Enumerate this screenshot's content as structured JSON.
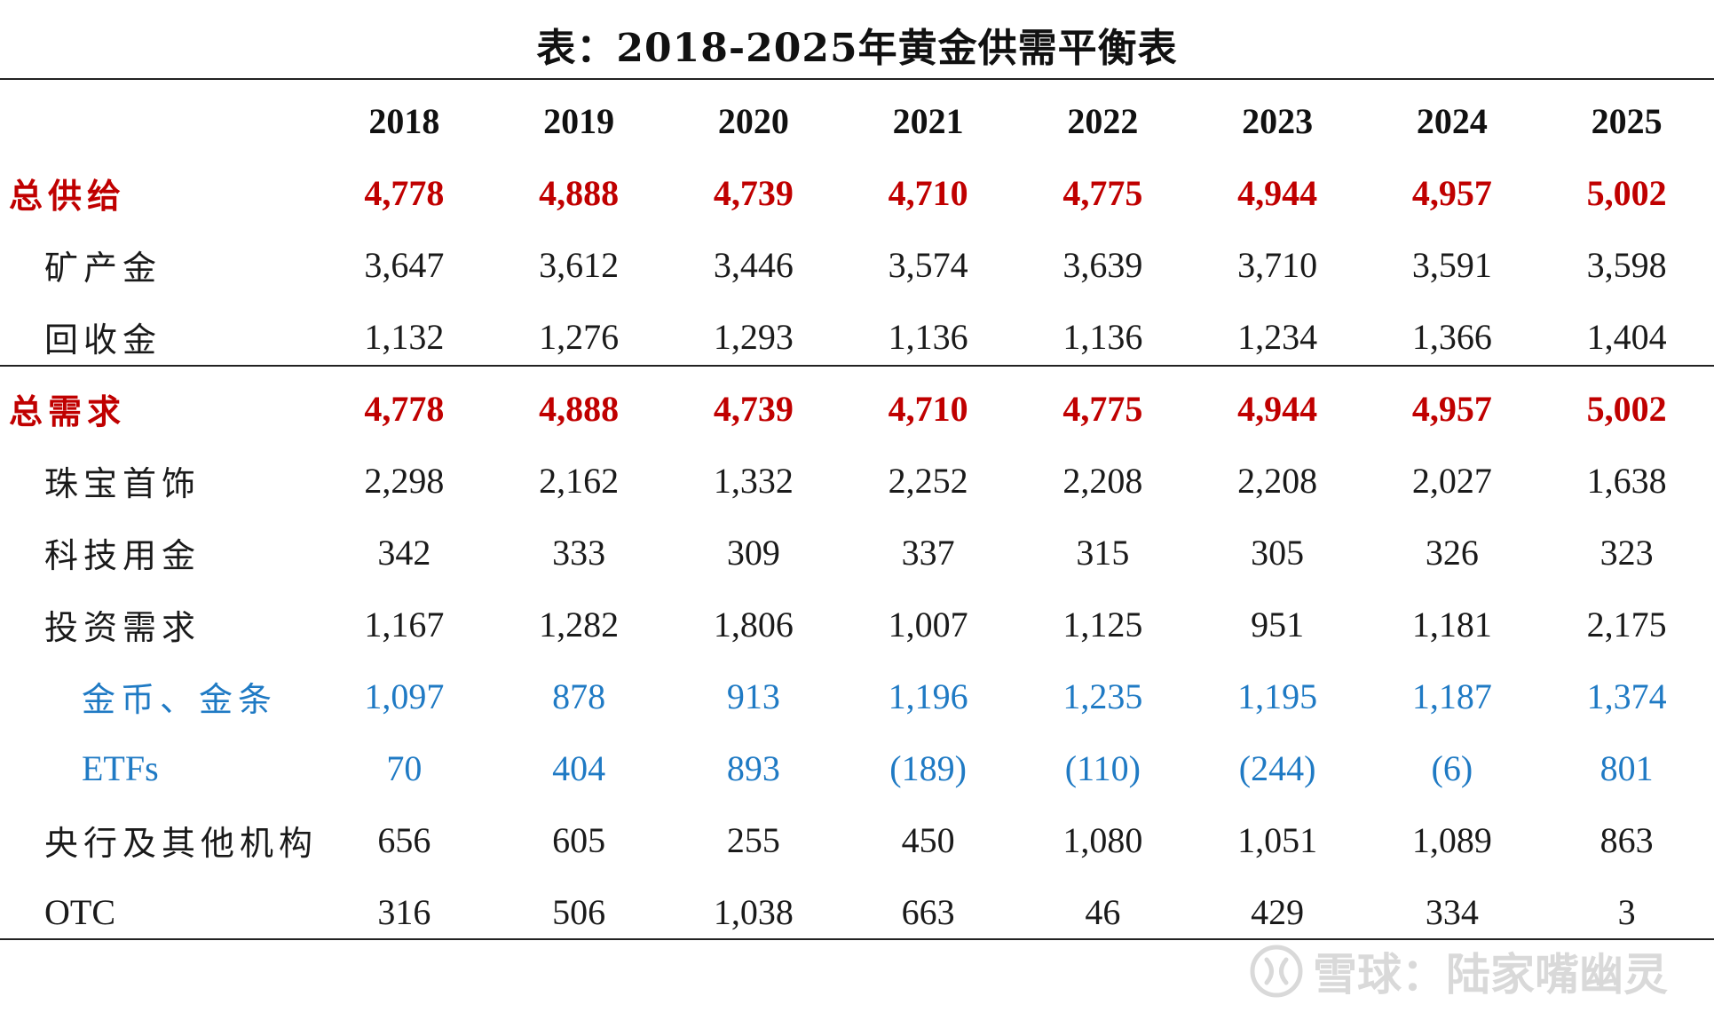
{
  "title": "表：2018-2025年黄金供需平衡表",
  "table": {
    "years": [
      "2018",
      "2019",
      "2020",
      "2021",
      "2022",
      "2023",
      "2024",
      "2025"
    ],
    "rows": [
      {
        "label": "总供给",
        "level": 0,
        "style": "total",
        "values": [
          "4,778",
          "4,888",
          "4,739",
          "4,710",
          "4,775",
          "4,944",
          "4,957",
          "5,002"
        ]
      },
      {
        "label": "矿产金",
        "level": 1,
        "style": "normal",
        "values": [
          "3,647",
          "3,612",
          "3,446",
          "3,574",
          "3,639",
          "3,710",
          "3,591",
          "3,598"
        ]
      },
      {
        "label": "回收金",
        "level": 1,
        "style": "normal",
        "values": [
          "1,132",
          "1,276",
          "1,293",
          "1,136",
          "1,136",
          "1,234",
          "1,366",
          "1,404"
        ]
      },
      {
        "label": "总需求",
        "level": 0,
        "style": "total",
        "values": [
          "4,778",
          "4,888",
          "4,739",
          "4,710",
          "4,775",
          "4,944",
          "4,957",
          "5,002"
        ]
      },
      {
        "label": "珠宝首饰",
        "level": 1,
        "style": "normal",
        "values": [
          "2,298",
          "2,162",
          "1,332",
          "2,252",
          "2,208",
          "2,208",
          "2,027",
          "1,638"
        ]
      },
      {
        "label": "科技用金",
        "level": 1,
        "style": "normal",
        "values": [
          "342",
          "333",
          "309",
          "337",
          "315",
          "305",
          "326",
          "323"
        ]
      },
      {
        "label": "投资需求",
        "level": 1,
        "style": "normal",
        "values": [
          "1,167",
          "1,282",
          "1,806",
          "1,007",
          "1,125",
          "951",
          "1,181",
          "2,175"
        ]
      },
      {
        "label": "金币、金条",
        "level": 2,
        "style": "sub",
        "values": [
          "1,097",
          "878",
          "913",
          "1,196",
          "1,235",
          "1,195",
          "1,187",
          "1,374"
        ]
      },
      {
        "label": "ETFs",
        "level": 2,
        "style": "sub",
        "values": [
          "70",
          "404",
          "893",
          "(189)",
          "(110)",
          "(244)",
          "(6)",
          "801"
        ]
      },
      {
        "label": "央行及其他机构",
        "level": 1,
        "style": "normal",
        "values": [
          "656",
          "605",
          "255",
          "450",
          "1,080",
          "1,051",
          "1,089",
          "863"
        ]
      },
      {
        "label": "OTC",
        "level": 1,
        "style": "normal",
        "values": [
          "316",
          "506",
          "1,038",
          "663",
          "46",
          "429",
          "334",
          "3"
        ]
      }
    ]
  },
  "watermark": {
    "text": "雪球：陆家嘴幽灵",
    "icon": "snowball-logo-icon"
  },
  "colors": {
    "total": "#c00000",
    "sub": "#1f7ac4",
    "text": "#1a1a1a",
    "watermark": "#d8d8d8"
  }
}
